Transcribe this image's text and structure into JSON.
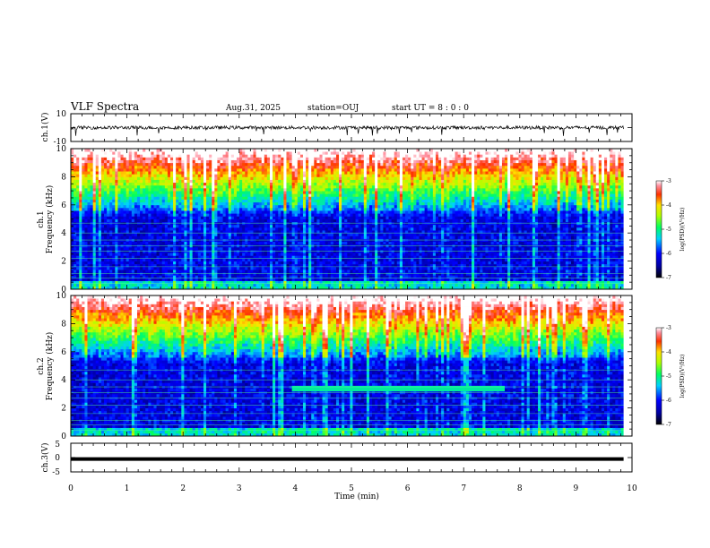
{
  "header": {
    "title": "VLF Spectra",
    "date": "Aug.31, 2025",
    "station": "station=OUJ",
    "start": "start UT = 8 : 0 : 0"
  },
  "chart_data": [
    {
      "type": "line",
      "name": "ch1-waveform",
      "ylabel": "ch.1(V)",
      "ylim": [
        -10,
        10
      ],
      "y_ticklabels": [
        "10",
        "-10"
      ],
      "description_values": {
        "baseline": 0,
        "typical_amplitude": 2,
        "max_spike": 6
      }
    },
    {
      "type": "heatmap",
      "name": "ch1-spectrogram",
      "ylabel_top": "ch.1",
      "ylabel": "Frequency (kHz)",
      "ylim": [
        0,
        10
      ],
      "y_ticklabels": [
        "0",
        "2",
        "4",
        "6",
        "8",
        "10"
      ],
      "colorbar": {
        "label": "log(PSD)(V²/Hz)",
        "range": [
          -7,
          -3
        ],
        "ticklabels": [
          "-3",
          "-4",
          "-5",
          "-6",
          "-7"
        ]
      }
    },
    {
      "type": "heatmap",
      "name": "ch2-spectrogram",
      "ylabel_top": "ch.2",
      "ylabel": "Frequency (kHz)",
      "ylim": [
        0,
        10
      ],
      "y_ticklabels": [
        "0",
        "2",
        "4",
        "6",
        "8",
        "10"
      ],
      "band": {
        "t_start_min": 3.9,
        "t_end_min": 7.7,
        "freq_khz": 3.4
      },
      "colorbar": {
        "label": "log(PSD)(V²/Hz)",
        "range": [
          -7,
          -3
        ],
        "ticklabels": [
          "-3",
          "-4",
          "-5",
          "-6",
          "-7"
        ]
      }
    },
    {
      "type": "line",
      "name": "ch3-waveform",
      "ylabel": "ch.3(V)",
      "ylim": [
        -5,
        5
      ],
      "y_ticklabels": [
        "5",
        "0",
        "-5"
      ],
      "level": -0.5
    }
  ],
  "x_axis": {
    "label": "Time (min)",
    "range": [
      0,
      10
    ],
    "data_end": 9.85,
    "ticklabels": [
      "0",
      "1",
      "2",
      "3",
      "4",
      "5",
      "6",
      "7",
      "8",
      "9",
      "10"
    ]
  },
  "colors": {
    "colormap": [
      "#000080",
      "#0000ff",
      "#00c8ff",
      "#00ff80",
      "#a0ff00",
      "#ffff00",
      "#ff8000",
      "#ff0000",
      "#ffffff"
    ]
  }
}
